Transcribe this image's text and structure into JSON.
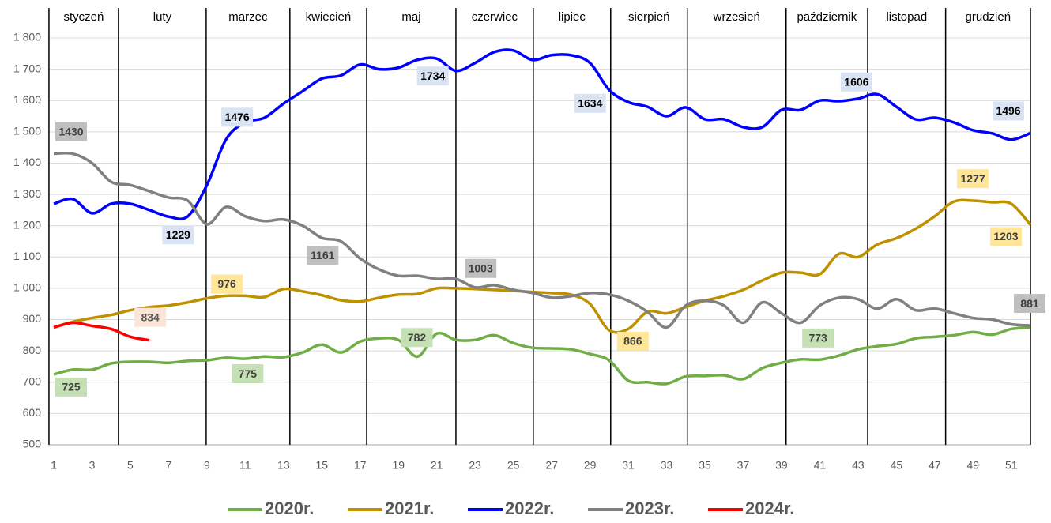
{
  "chart_data": {
    "type": "line",
    "x": [
      1,
      2,
      3,
      4,
      5,
      6,
      7,
      8,
      9,
      10,
      11,
      12,
      13,
      14,
      15,
      16,
      17,
      18,
      19,
      20,
      21,
      22,
      23,
      24,
      25,
      26,
      27,
      28,
      29,
      30,
      31,
      32,
      33,
      34,
      35,
      36,
      37,
      38,
      39,
      40,
      41,
      42,
      43,
      44,
      45,
      46,
      47,
      48,
      49,
      50,
      51,
      52
    ],
    "xlim": [
      1,
      52
    ],
    "xticks": [
      1,
      3,
      5,
      7,
      9,
      11,
      13,
      15,
      17,
      19,
      21,
      23,
      25,
      27,
      29,
      31,
      33,
      35,
      37,
      39,
      41,
      43,
      45,
      47,
      49,
      51
    ],
    "ylim": [
      500,
      1800
    ],
    "yticks": [
      500,
      600,
      700,
      800,
      900,
      {
        "value": 1000,
        "label": "1 000"
      },
      {
        "value": 1100,
        "label": "1 100"
      },
      {
        "value": 1200,
        "label": "1 200"
      },
      {
        "value": 1300,
        "label": "1 300"
      },
      {
        "value": 1400,
        "label": "1 400"
      },
      {
        "value": 1500,
        "label": "1 500"
      },
      {
        "value": 1600,
        "label": "1 600"
      },
      {
        "value": 1700,
        "label": "1 700"
      },
      {
        "value": 1800,
        "label": "1 800"
      }
    ],
    "grid": true,
    "months": [
      "styczeń",
      "luty",
      "marzec",
      "kwiecień",
      "maj",
      "czerwiec",
      "lipiec",
      "sierpień",
      "wrzesień",
      "październik",
      "listopad",
      "grudzień"
    ],
    "month_boundaries": [
      0.75,
      4.38,
      8.96,
      13.33,
      17.34,
      22.0,
      26.04,
      30.08,
      34.08,
      39.24,
      43.5,
      47.57,
      52
    ],
    "legend": "bottom",
    "series": [
      {
        "name": "2020r.",
        "color": "#70ad47",
        "label_fill": "#c5e0b4",
        "labeled": [
          0,
          10,
          19,
          39
        ],
        "values": [
          725,
          740,
          740,
          760,
          765,
          765,
          762,
          768,
          770,
          778,
          775,
          782,
          780,
          795,
          820,
          795,
          830,
          840,
          835,
          782,
          855,
          835,
          835,
          850,
          825,
          810,
          808,
          805,
          790,
          770,
          705,
          700,
          695,
          718,
          720,
          722,
          710,
          745,
          762,
          773,
          772,
          785,
          805,
          815,
          822,
          840,
          845,
          850,
          860,
          852,
          870,
          875
        ]
      },
      {
        "name": "2021r.",
        "color": "#bf9000",
        "label_fill": "#ffe699",
        "labeled": [
          9,
          29,
          47,
          51
        ],
        "values": [
          875,
          893,
          905,
          915,
          930,
          940,
          945,
          955,
          968,
          976,
          976,
          972,
          998,
          990,
          978,
          962,
          958,
          970,
          980,
          982,
          1000,
          1000,
          998,
          995,
          992,
          988,
          985,
          980,
          950,
          866,
          870,
          925,
          920,
          940,
          960,
          975,
          995,
          1025,
          1050,
          1050,
          1045,
          1110,
          1100,
          1140,
          1160,
          1190,
          1230,
          1277,
          1280,
          1275,
          1270,
          1203
        ]
      },
      {
        "name": "2022r.",
        "color": "#0000ff",
        "label_fill": "#dae3f3",
        "labeled": [
          6,
          9,
          20,
          29,
          42,
          51
        ],
        "values": [
          1270,
          1285,
          1240,
          1270,
          1270,
          1250,
          1229,
          1230,
          1330,
          1476,
          1530,
          1545,
          1590,
          1630,
          1670,
          1680,
          1715,
          1700,
          1705,
          1730,
          1734,
          1695,
          1720,
          1755,
          1760,
          1730,
          1745,
          1745,
          1720,
          1634,
          1595,
          1580,
          1550,
          1578,
          1540,
          1540,
          1515,
          1515,
          1570,
          1570,
          1600,
          1598,
          1606,
          1620,
          1580,
          1540,
          1545,
          1530,
          1505,
          1495,
          1475,
          1496
        ]
      },
      {
        "name": "2023r.",
        "color": "#808080",
        "label_fill": "#bfbfbf",
        "labeled": [
          0,
          14,
          22,
          51
        ],
        "values": [
          1430,
          1430,
          1400,
          1340,
          1330,
          1310,
          1290,
          1280,
          1205,
          1260,
          1230,
          1215,
          1220,
          1200,
          1161,
          1150,
          1095,
          1060,
          1040,
          1040,
          1030,
          1030,
          1003,
          1010,
          995,
          985,
          970,
          975,
          985,
          980,
          960,
          925,
          875,
          945,
          960,
          945,
          890,
          955,
          920,
          890,
          945,
          970,
          965,
          935,
          965,
          930,
          935,
          920,
          905,
          900,
          885,
          881
        ]
      },
      {
        "name": "2024r.",
        "color": "#ff0000",
        "label_fill": "#fbe5d6",
        "labeled": [
          5
        ],
        "values": [
          875,
          890,
          880,
          870,
          845,
          834,
          null,
          null,
          null,
          null,
          null,
          null,
          null,
          null,
          null,
          null,
          null,
          null,
          null,
          null,
          null,
          null,
          null,
          null,
          null,
          null,
          null,
          null,
          null,
          null,
          null,
          null,
          null,
          null,
          null,
          null,
          null,
          null,
          null,
          null,
          null,
          null,
          null,
          null,
          null,
          null,
          null,
          null,
          null,
          null,
          null,
          null
        ]
      }
    ]
  }
}
